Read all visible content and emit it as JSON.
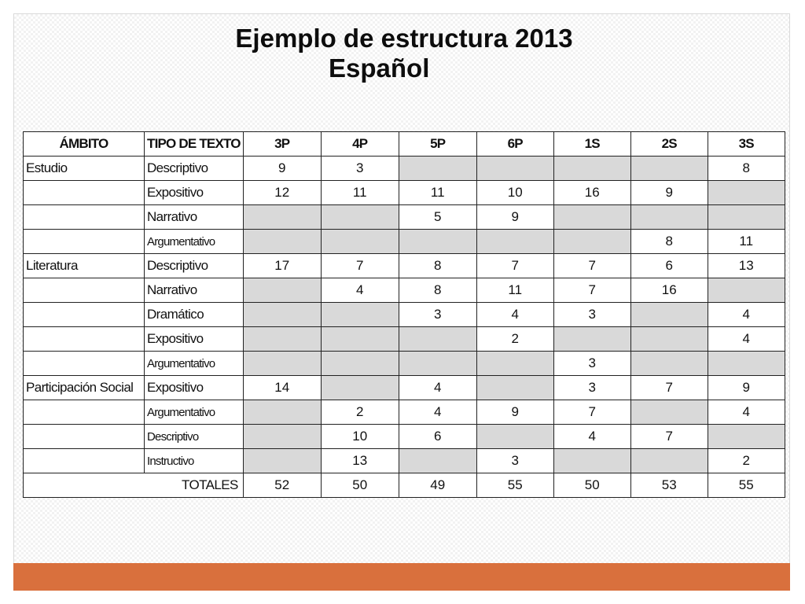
{
  "title": {
    "line1": "Ejemplo de estructura 2013",
    "line2": "Español"
  },
  "table": {
    "headers": [
      "ÁMBITO",
      "TIPO DE TEXTO",
      "3P",
      "4P",
      "5P",
      "6P",
      "1S",
      "2S",
      "3S"
    ],
    "rows": [
      {
        "ambito": "Estudio",
        "tipo": "Descriptivo",
        "values": [
          "9",
          "3",
          "",
          "",
          "",
          "",
          "8"
        ]
      },
      {
        "ambito": "",
        "tipo": "Expositivo",
        "values": [
          "12",
          "11",
          "11",
          "10",
          "16",
          "9",
          ""
        ]
      },
      {
        "ambito": "",
        "tipo": "Narrativo",
        "values": [
          "",
          "",
          "5",
          "9",
          "",
          "",
          ""
        ]
      },
      {
        "ambito": "",
        "tipo": "Argumentativo",
        "values": [
          "",
          "",
          "",
          "",
          "",
          "8",
          "11"
        ]
      },
      {
        "ambito": "Literatura",
        "tipo": "Descriptivo",
        "values": [
          "17",
          "7",
          "8",
          "7",
          "7",
          "6",
          "13"
        ]
      },
      {
        "ambito": "",
        "tipo": "Narrativo",
        "values": [
          "",
          "4",
          "8",
          "11",
          "7",
          "16",
          ""
        ]
      },
      {
        "ambito": "",
        "tipo": "Dramático",
        "values": [
          "",
          "",
          "3",
          "4",
          "3",
          "",
          "4"
        ]
      },
      {
        "ambito": "",
        "tipo": "Expositivo",
        "values": [
          "",
          "",
          "",
          "2",
          "",
          "",
          "4"
        ]
      },
      {
        "ambito": "",
        "tipo": "Argumentativo",
        "values": [
          "",
          "",
          "",
          "",
          "3",
          "",
          ""
        ]
      },
      {
        "ambito": "Participación Social",
        "tipo": "Expositivo",
        "values": [
          "14",
          "",
          "4",
          "",
          "3",
          "7",
          "9"
        ]
      },
      {
        "ambito": "",
        "tipo": "Argumentativo",
        "values": [
          "",
          "2",
          "4",
          "9",
          "7",
          "",
          "4"
        ]
      },
      {
        "ambito": "",
        "tipo": "Descriptivo",
        "values": [
          "",
          "10",
          "6",
          "",
          "4",
          "7",
          ""
        ]
      },
      {
        "ambito": "",
        "tipo": "Instructivo",
        "values": [
          "",
          "13",
          "",
          "3",
          "",
          "",
          "2"
        ]
      }
    ],
    "totals_label": "TOTALES",
    "totals": [
      "52",
      "50",
      "49",
      "55",
      "50",
      "53",
      "55"
    ]
  },
  "colors": {
    "accent_bar": "#d9703d",
    "shaded_cell": "#d9d9d9"
  }
}
